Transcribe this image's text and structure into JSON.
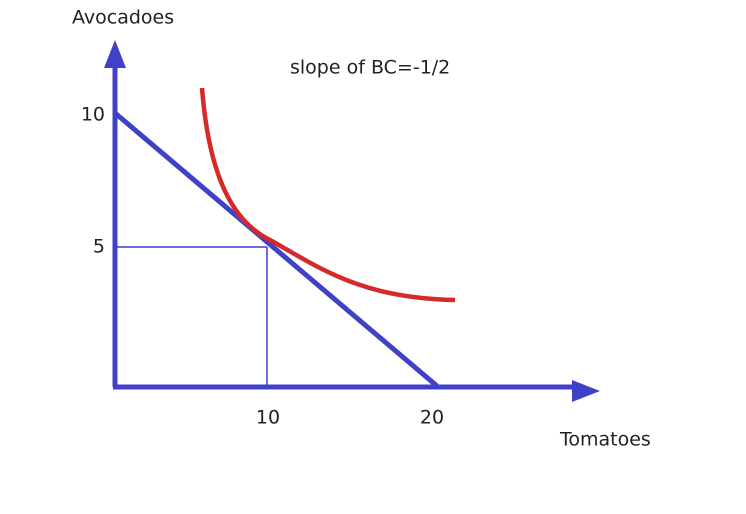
{
  "y_axis": {
    "label": "Avocadoes",
    "ticks": [
      10,
      5
    ]
  },
  "x_axis": {
    "label": "Tomatoes",
    "ticks": [
      10,
      20
    ]
  },
  "annotation": "slope of BC=-1/2"
}
